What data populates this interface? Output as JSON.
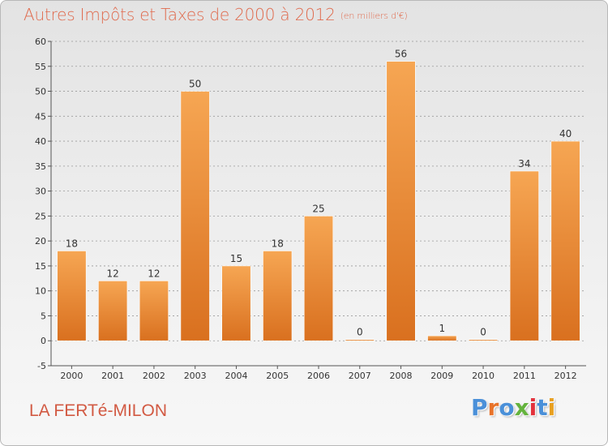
{
  "header": {
    "title": "Autres Impôts et Taxes de 2000 à 2012",
    "unit": "(en milliers d'€)"
  },
  "footer": {
    "location": "LA FERTé-MILON",
    "logo_text": "Proxiti"
  },
  "colors": {
    "bar_light": "#f6a653",
    "bar_dark": "#d9701f",
    "axis": "#555555",
    "grid": "#999999",
    "label": "#333333",
    "title": "#e06a4d",
    "location": "#d25a43",
    "logo_letters": [
      "#4a90d9",
      "#e8732a",
      "#4a90d9",
      "#64b33d",
      "#e3323c",
      "#4a90d9",
      "#e8a020"
    ]
  },
  "chart_data": {
    "type": "bar",
    "categories": [
      "2000",
      "2001",
      "2002",
      "2003",
      "2004",
      "2005",
      "2006",
      "2007",
      "2008",
      "2009",
      "2010",
      "2011",
      "2012"
    ],
    "values": [
      18,
      12,
      12,
      50,
      15,
      18,
      25,
      0,
      56,
      1,
      0,
      34,
      40
    ],
    "title": "Autres Impôts et Taxes de 2000 à 2012",
    "subtitle": "(en milliers d'€)",
    "ylim": [
      -5,
      60
    ],
    "yticks": [
      -5,
      0,
      5,
      10,
      15,
      20,
      25,
      30,
      35,
      40,
      45,
      50,
      55,
      60
    ],
    "grid": true,
    "data_labels": true
  }
}
